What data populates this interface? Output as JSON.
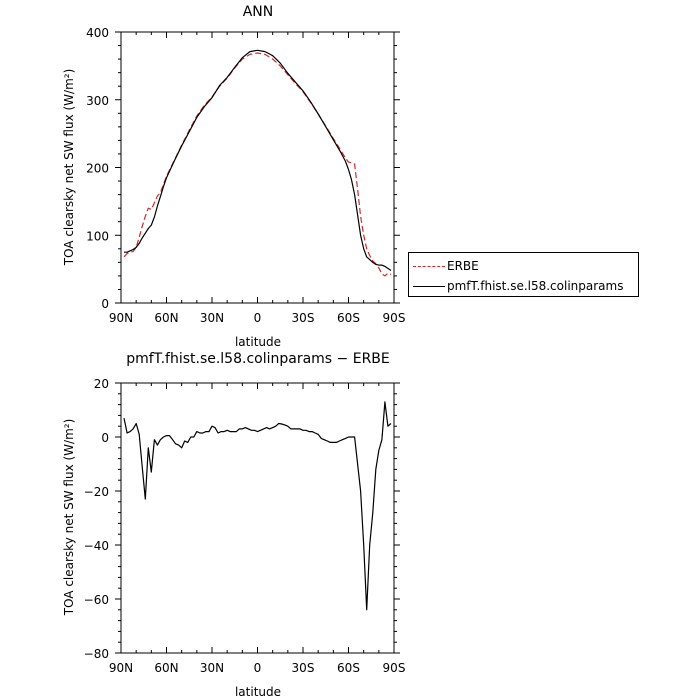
{
  "chart_data": [
    {
      "type": "line",
      "title": "ANN",
      "xlabel": "latitude",
      "ylabel": "TOA clearsky net SW flux (W/m²)",
      "xlim": [
        90,
        -90
      ],
      "ylim": [
        0,
        400
      ],
      "x_ticks": [
        90,
        60,
        30,
        0,
        -30,
        -60,
        -90
      ],
      "x_tick_labels": [
        "90N",
        "60N",
        "30N",
        "0",
        "30S",
        "60S",
        "90S"
      ],
      "y_ticks": [
        0,
        100,
        200,
        300,
        400
      ],
      "y_tick_labels": [
        "0",
        "100",
        "200",
        "300",
        "400"
      ],
      "legend_position": "right",
      "series": [
        {
          "name": "ERBE",
          "color": "#d62728",
          "dash": "dashed",
          "x": [
            88,
            86,
            84,
            82,
            80,
            78,
            76,
            74,
            72,
            70,
            68,
            66,
            64,
            62,
            60,
            55,
            50,
            45,
            40,
            35,
            30,
            25,
            20,
            15,
            10,
            5,
            0,
            -5,
            -10,
            -15,
            -20,
            -25,
            -30,
            -35,
            -40,
            -45,
            -50,
            -55,
            -58,
            -60,
            -62,
            -64,
            -66,
            -68,
            -70,
            -72,
            -74,
            -76,
            -78,
            -80,
            -82,
            -84,
            -86,
            -88
          ],
          "y": [
            68,
            73,
            75,
            76,
            82,
            97,
            113,
            128,
            140,
            138,
            148,
            158,
            163,
            175,
            187,
            210,
            233,
            255,
            276,
            292,
            304,
            320,
            332,
            347,
            360,
            367,
            369,
            367,
            360,
            350,
            337,
            324,
            312,
            296,
            279,
            261,
            243,
            225,
            214,
            208,
            207,
            205,
            168,
            128,
            100,
            80,
            70,
            62,
            58,
            52,
            43,
            40,
            44,
            42
          ]
        },
        {
          "name": "pmfT.fhist.se.l58.colinparams",
          "color": "#000000",
          "dash": "solid",
          "x": [
            88,
            86,
            84,
            82,
            80,
            78,
            76,
            74,
            72,
            70,
            68,
            66,
            64,
            62,
            60,
            55,
            50,
            45,
            40,
            35,
            30,
            25,
            20,
            15,
            10,
            5,
            0,
            -5,
            -10,
            -15,
            -20,
            -25,
            -30,
            -35,
            -40,
            -45,
            -50,
            -55,
            -58,
            -60,
            -62,
            -64,
            -66,
            -68,
            -70,
            -72,
            -74,
            -76,
            -78,
            -80,
            -82,
            -84,
            -86,
            -88
          ],
          "y": [
            75,
            75,
            77,
            79,
            82,
            88,
            96,
            103,
            110,
            115,
            127,
            143,
            157,
            172,
            185,
            209,
            232,
            253,
            274,
            290,
            303,
            321,
            333,
            348,
            362,
            371,
            373,
            371,
            365,
            354,
            339,
            326,
            313,
            297,
            279,
            260,
            241,
            222,
            209,
            197,
            182,
            160,
            130,
            100,
            80,
            68,
            64,
            60,
            57,
            56,
            56,
            54,
            51,
            48
          ]
        }
      ]
    },
    {
      "type": "line",
      "title": "pmfT.fhist.se.l58.colinparams − ERBE",
      "xlabel": "latitude",
      "ylabel": "TOA clearsky net SW flux (W/m²)",
      "xlim": [
        90,
        -90
      ],
      "ylim": [
        -80,
        20
      ],
      "x_ticks": [
        90,
        60,
        30,
        0,
        -30,
        -60,
        -90
      ],
      "x_tick_labels": [
        "90N",
        "60N",
        "30N",
        "0",
        "30S",
        "60S",
        "90S"
      ],
      "y_ticks": [
        -80,
        -60,
        -40,
        -20,
        0,
        20
      ],
      "y_tick_labels": [
        "−80",
        "−60",
        "−40",
        "−20",
        "0",
        "20"
      ],
      "series": [
        {
          "color": "#000000",
          "dash": "solid",
          "x": [
            88,
            86,
            84,
            82,
            80,
            78,
            76,
            74,
            72,
            70,
            68,
            66,
            64,
            62,
            60,
            58,
            56,
            54,
            52,
            50,
            48,
            46,
            44,
            42,
            40,
            38,
            36,
            34,
            32,
            30,
            28,
            26,
            24,
            22,
            20,
            18,
            16,
            14,
            12,
            10,
            8,
            6,
            4,
            2,
            0,
            -2,
            -4,
            -6,
            -8,
            -10,
            -12,
            -14,
            -16,
            -18,
            -20,
            -22,
            -24,
            -26,
            -28,
            -30,
            -32,
            -34,
            -36,
            -38,
            -40,
            -42,
            -44,
            -46,
            -48,
            -50,
            -52,
            -54,
            -56,
            -58,
            -60,
            -62,
            -64,
            -66,
            -68,
            -70,
            -72,
            -74,
            -76,
            -78,
            -80,
            -82,
            -84,
            -86,
            -88
          ],
          "y": [
            7,
            1.5,
            2,
            3,
            5,
            1,
            -11,
            -23,
            -4,
            -13,
            -1,
            -3,
            -1,
            0,
            0.5,
            0.5,
            -1,
            -2.5,
            -3,
            -4,
            -1.5,
            -2,
            0,
            0,
            2,
            1.5,
            1.5,
            2,
            2,
            4,
            3.5,
            1.5,
            2,
            2,
            2.5,
            2,
            2,
            2,
            3,
            3,
            3.5,
            3,
            2.5,
            2.5,
            2,
            2.5,
            3,
            3.5,
            3,
            3.5,
            4,
            5,
            4.8,
            4.5,
            4,
            3,
            3,
            3,
            3,
            2.5,
            2.5,
            2,
            2,
            1.5,
            1,
            -0.5,
            -1,
            -1.5,
            -2,
            -2,
            -2,
            -1.5,
            -1,
            -0.5,
            0,
            0,
            0,
            -10,
            -20,
            -40,
            -64,
            -40,
            -28,
            -12,
            -5,
            -1,
            13,
            4,
            5
          ]
        }
      ]
    }
  ]
}
